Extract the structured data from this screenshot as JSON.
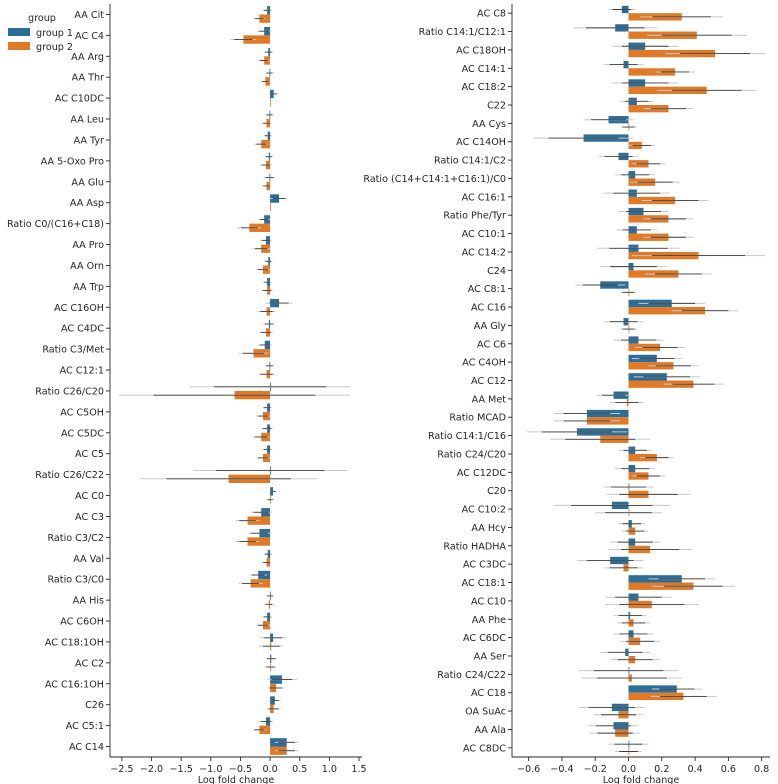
{
  "legend": {
    "title": "group",
    "entries": [
      "group 1",
      "group 2"
    ]
  },
  "colors": {
    "group 1": "#2c6e98",
    "group 2": "#e07a27",
    "error_bar": "#404040",
    "ci_band": "#c8c8c8"
  },
  "chart_data": [
    {
      "type": "bar",
      "orientation": "horizontal",
      "xlabel": "Log fold change",
      "xlim": [
        -2.7,
        1.55
      ],
      "xticks": [
        -2.5,
        -2.0,
        -1.5,
        -1.0,
        -0.5,
        0.0,
        0.5,
        1.0,
        1.5
      ],
      "xtick_labels": [
        "−2.5",
        "−2.0",
        "−1.5",
        "−1.0",
        "−0.5",
        "0.0",
        "0.5",
        "1.0",
        "1.5"
      ],
      "categories": [
        "AA Cit",
        "AC C4",
        "AA Arg",
        "AA Thr",
        "AC C10DC",
        "AA Leu",
        "AA Tyr",
        "AA 5-Oxo Pro",
        "AA Glu",
        "AA Asp",
        "Ratio C0/(C16+C18)",
        "AA Pro",
        "AA Orn",
        "AA Trp",
        "AC C16OH",
        "AC C4DC",
        "Ratio C3/Met",
        "AC C12:1",
        "Ratio C26/C20",
        "AC C5OH",
        "AC C5DC",
        "AC C5",
        "Ratio C26/C22",
        "AC C0",
        "AC C3",
        "Ratio C3/C2",
        "AA Val",
        "Ratio C3/C0",
        "AA His",
        "AC C6OH",
        "AC C18:1OH",
        "AC C2",
        "AC C16:1OH",
        "C26",
        "AC C5:1",
        "AC C14"
      ],
      "series": [
        {
          "name": "group 1",
          "values": [
            -0.05,
            -0.1,
            -0.03,
            -0.01,
            0.06,
            -0.01,
            -0.04,
            -0.02,
            -0.01,
            0.15,
            -0.1,
            -0.07,
            -0.03,
            -0.05,
            0.15,
            -0.02,
            -0.09,
            -0.01,
            0.0,
            -0.05,
            -0.05,
            -0.05,
            0.0,
            0.05,
            -0.15,
            -0.18,
            -0.04,
            -0.2,
            0.0,
            -0.05,
            0.05,
            0.02,
            0.2,
            0.08,
            -0.07,
            0.28
          ],
          "errors": [
            0.08,
            0.12,
            0.08,
            0.07,
            0.08,
            0.07,
            0.07,
            0.07,
            0.1,
            0.15,
            0.1,
            0.1,
            0.07,
            0.07,
            0.23,
            0.1,
            0.12,
            0.08,
            1.35,
            0.08,
            0.1,
            0.08,
            1.3,
            0.06,
            0.18,
            0.2,
            0.07,
            0.15,
            0.07,
            0.08,
            0.22,
            0.1,
            0.25,
            0.1,
            0.12,
            0.2
          ]
        },
        {
          "name": "group 2",
          "values": [
            -0.18,
            -0.45,
            -0.1,
            -0.08,
            0.0,
            -0.06,
            -0.15,
            -0.07,
            -0.06,
            0.0,
            -0.35,
            -0.15,
            -0.12,
            -0.05,
            -0.06,
            -0.07,
            -0.28,
            -0.06,
            -0.6,
            -0.12,
            -0.15,
            -0.12,
            -0.7,
            0.0,
            -0.38,
            -0.38,
            -0.06,
            -0.33,
            -0.02,
            -0.12,
            0.02,
            0.01,
            0.1,
            0.06,
            -0.18,
            0.28
          ],
          "errors": [
            0.1,
            0.22,
            0.1,
            0.08,
            0.0,
            0.08,
            0.12,
            0.1,
            0.08,
            0.0,
            0.2,
            0.15,
            0.12,
            0.1,
            0.15,
            0.12,
            0.25,
            0.15,
            1.95,
            0.12,
            0.15,
            0.12,
            1.5,
            0.06,
            0.2,
            0.2,
            0.08,
            0.2,
            0.08,
            0.12,
            0.2,
            0.1,
            0.15,
            0.12,
            0.12,
            0.2
          ]
        }
      ]
    },
    {
      "type": "bar",
      "orientation": "horizontal",
      "xlabel": "Log fold change",
      "xlim": [
        -0.7,
        0.85
      ],
      "xticks": [
        -0.6,
        -0.4,
        -0.2,
        0.0,
        0.2,
        0.4,
        0.6,
        0.8
      ],
      "xtick_labels": [
        "−0.6",
        "−0.4",
        "−0.2",
        "0.0",
        "0.2",
        "0.4",
        "0.6",
        "0.8"
      ],
      "categories": [
        "AC C8",
        "Ratio C14:1/C12:1",
        "AC C18OH",
        "AC C14:1",
        "AC C18:2",
        "C22",
        "AA Cys",
        "AC C14OH",
        "Ratio C14:1/C2",
        "Ratio (C14+C14:1+C16:1)/C0",
        "AC C16:1",
        "Ratio Phe/Tyr",
        "AC C10:1",
        "AC C14:2",
        "C24",
        "AC C8:1",
        "AC C16",
        "AA Gly",
        "AC C6",
        "AC C4OH",
        "AC C12",
        "AA Met",
        "Ratio MCAD",
        "Ratio C14:1/C16",
        "Ratio C24/C20",
        "AC C12DC",
        "C20",
        "AC C10:2",
        "AA Hcy",
        "Ratio HADHA",
        "AC C3DC",
        "AC C18:1",
        "AC C10",
        "AA Phe",
        "AC C6DC",
        "AA Ser",
        "Ratio C24/C22",
        "AC C18",
        "OA SuAc",
        "AA Ala",
        "AC C8DC"
      ],
      "series": [
        {
          "name": "group 1",
          "values": [
            -0.04,
            -0.08,
            0.1,
            -0.03,
            0.1,
            0.05,
            -0.12,
            -0.27,
            -0.06,
            0.04,
            0.05,
            0.09,
            0.05,
            0.06,
            0.03,
            -0.17,
            0.26,
            -0.03,
            0.06,
            0.17,
            0.23,
            -0.09,
            -0.25,
            -0.31,
            0.04,
            0.04,
            0.0,
            -0.1,
            0.02,
            0.04,
            -0.11,
            0.32,
            0.06,
            0.01,
            0.03,
            -0.02,
            0.0,
            0.29,
            -0.1,
            -0.09,
            0.0
          ],
          "errors": [
            0.08,
            0.25,
            0.2,
            0.12,
            0.2,
            0.1,
            0.15,
            0.3,
            0.12,
            0.12,
            0.2,
            0.15,
            0.12,
            0.25,
            0.2,
            0.15,
            0.2,
            0.12,
            0.15,
            0.15,
            0.2,
            0.1,
            0.2,
            0.3,
            0.1,
            0.12,
            0.15,
            0.35,
            0.08,
            0.15,
            0.2,
            0.2,
            0.2,
            0.1,
            0.12,
            0.15,
            0.3,
            0.15,
            0.2,
            0.15,
            0.12
          ]
        },
        {
          "name": "group 2",
          "values": [
            0.32,
            0.41,
            0.52,
            0.28,
            0.47,
            0.24,
            0.0,
            0.08,
            0.12,
            0.16,
            0.28,
            0.24,
            0.24,
            0.42,
            0.3,
            0.0,
            0.46,
            0.0,
            0.19,
            0.27,
            0.39,
            -0.01,
            -0.25,
            -0.17,
            0.17,
            0.12,
            0.12,
            0.0,
            0.04,
            0.13,
            -0.03,
            0.39,
            0.14,
            0.03,
            0.07,
            0.04,
            0.02,
            0.33,
            -0.06,
            -0.08,
            0.0
          ],
          "errors": [
            0.25,
            0.3,
            0.3,
            0.12,
            0.3,
            0.15,
            0.05,
            0.08,
            0.1,
            0.15,
            0.2,
            0.15,
            0.15,
            0.4,
            0.2,
            0.05,
            0.2,
            0.05,
            0.15,
            0.15,
            0.18,
            0.1,
            0.2,
            0.3,
            0.1,
            0.1,
            0.25,
            0.2,
            0.08,
            0.25,
            0.12,
            0.25,
            0.28,
            0.1,
            0.12,
            0.15,
            0.3,
            0.2,
            0.15,
            0.15,
            0.08
          ]
        }
      ]
    }
  ]
}
